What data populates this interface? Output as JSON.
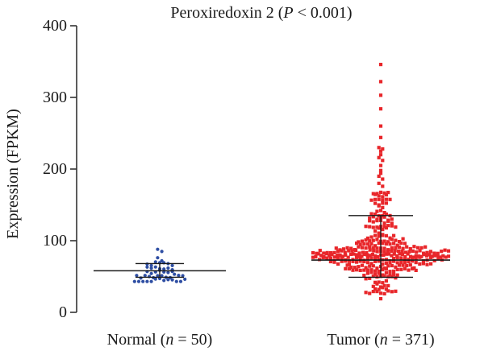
{
  "chart_data": {
    "type": "scatter",
    "title_main": "Peroxiredoxin 2 (",
    "title_p": "P",
    "title_rest": " < 0.001)",
    "ylabel": "Expression (FPKM)",
    "ylim": [
      0,
      400
    ],
    "yticks": [
      0,
      100,
      200,
      300,
      400
    ],
    "grid": false,
    "groups": [
      {
        "label_pre": "Normal (",
        "label_n": "n",
        "label_post": " = 50)",
        "n": 50,
        "color": "#2e4ea3",
        "marker": "circle",
        "mean": 58,
        "sd_low": 49,
        "sd_high": 68,
        "min": 43,
        "max": 88
      },
      {
        "label_pre": "Tumor (",
        "label_n": "n",
        "label_post": " = 371)",
        "n": 371,
        "color": "#e8262a",
        "marker": "square",
        "mean": 73,
        "sd_low": 49,
        "sd_high": 135,
        "min": 19,
        "max": 346
      }
    ]
  }
}
